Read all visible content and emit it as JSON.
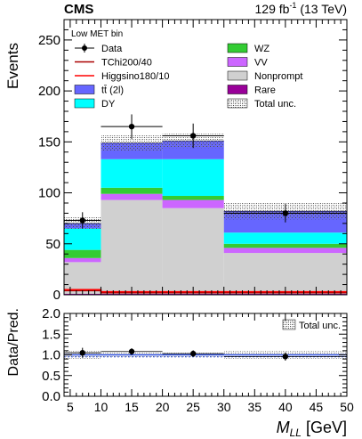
{
  "header": {
    "experiment": "CMS",
    "lumi_value": "129 fb",
    "lumi_exp": "-1",
    "energy": " (13 TeV)"
  },
  "chart_data": {
    "type": "bar",
    "stacked": true,
    "region_label": "Low MET bin",
    "xlabel": "M",
    "xlabel_sub": "LL",
    "xlabel_unit": " [GeV]",
    "ylabel": "Events",
    "ratio_ylabel": "Data/Pred.",
    "xlim": [
      4,
      50
    ],
    "ylim": [
      0,
      270
    ],
    "ratio_ylim": [
      0,
      2
    ],
    "x_ticks": [
      5,
      10,
      15,
      20,
      25,
      30,
      35,
      40,
      45,
      50
    ],
    "y_ticks": [
      0,
      50,
      100,
      150,
      200,
      250
    ],
    "ratio_ticks": [
      0.0,
      0.5,
      1.0,
      1.5,
      2.0
    ],
    "bins": [
      [
        4,
        10
      ],
      [
        10,
        20
      ],
      [
        20,
        30
      ],
      [
        30,
        50
      ]
    ],
    "stack": [
      {
        "name": "Rare",
        "color": "#990099",
        "values": [
          1,
          1,
          1,
          1
        ]
      },
      {
        "name": "Nonprompt",
        "color": "#d0d0d0",
        "values": [
          31,
          92,
          84,
          40
        ]
      },
      {
        "name": "VV",
        "color": "#cc66ff",
        "values": [
          4,
          6,
          8,
          5
        ]
      },
      {
        "name": "WZ",
        "color": "#33cc33",
        "values": [
          8,
          6,
          4,
          4
        ]
      },
      {
        "name": "DY",
        "color": "#00ffff",
        "values": [
          21,
          28,
          36,
          11
        ]
      },
      {
        "name": "tt̄ (2l)",
        "color": "#6666ff",
        "values": [
          5,
          16,
          18,
          21
        ]
      }
    ],
    "total_unc": [
      6,
      8,
      7,
      8
    ],
    "signals": [
      {
        "name": "TChi200/40",
        "color": "#aa0000",
        "values": [
          4,
          2,
          2,
          2
        ]
      },
      {
        "name": "Higgsino180/10",
        "color": "#ff0000",
        "values": [
          5,
          3,
          3,
          3
        ]
      }
    ],
    "data": {
      "name": "Data",
      "x": [
        7,
        15,
        25,
        40
      ],
      "y": [
        73,
        165,
        156,
        80
      ],
      "err": [
        8,
        12,
        12,
        9
      ]
    },
    "ratio": {
      "x": [
        7,
        15,
        25,
        40
      ],
      "y": [
        1.05,
        1.08,
        1.03,
        0.96
      ],
      "err": [
        0.12,
        0.08,
        0.08,
        0.1
      ],
      "unc": [
        0.09,
        0.05,
        0.05,
        0.09
      ]
    },
    "legend": {
      "left": [
        {
          "type": "data",
          "label": "Data"
        },
        {
          "type": "line",
          "label": "TChi200/40",
          "color": "#aa0000"
        },
        {
          "type": "line",
          "label": "Higgsino180/10",
          "color": "#ff0000"
        },
        {
          "type": "box",
          "label": "tt̄ (2l)",
          "color": "#6666ff"
        },
        {
          "type": "box",
          "label": "DY",
          "color": "#00ffff"
        }
      ],
      "right": [
        {
          "type": "box",
          "label": "WZ",
          "color": "#33cc33"
        },
        {
          "type": "box",
          "label": "VV",
          "color": "#cc66ff"
        },
        {
          "type": "box",
          "label": "Nonprompt",
          "color": "#d0d0d0"
        },
        {
          "type": "box",
          "label": "Rare",
          "color": "#990099"
        },
        {
          "type": "unc",
          "label": "Total unc."
        }
      ],
      "ratio_unc_label": "Total unc."
    }
  }
}
